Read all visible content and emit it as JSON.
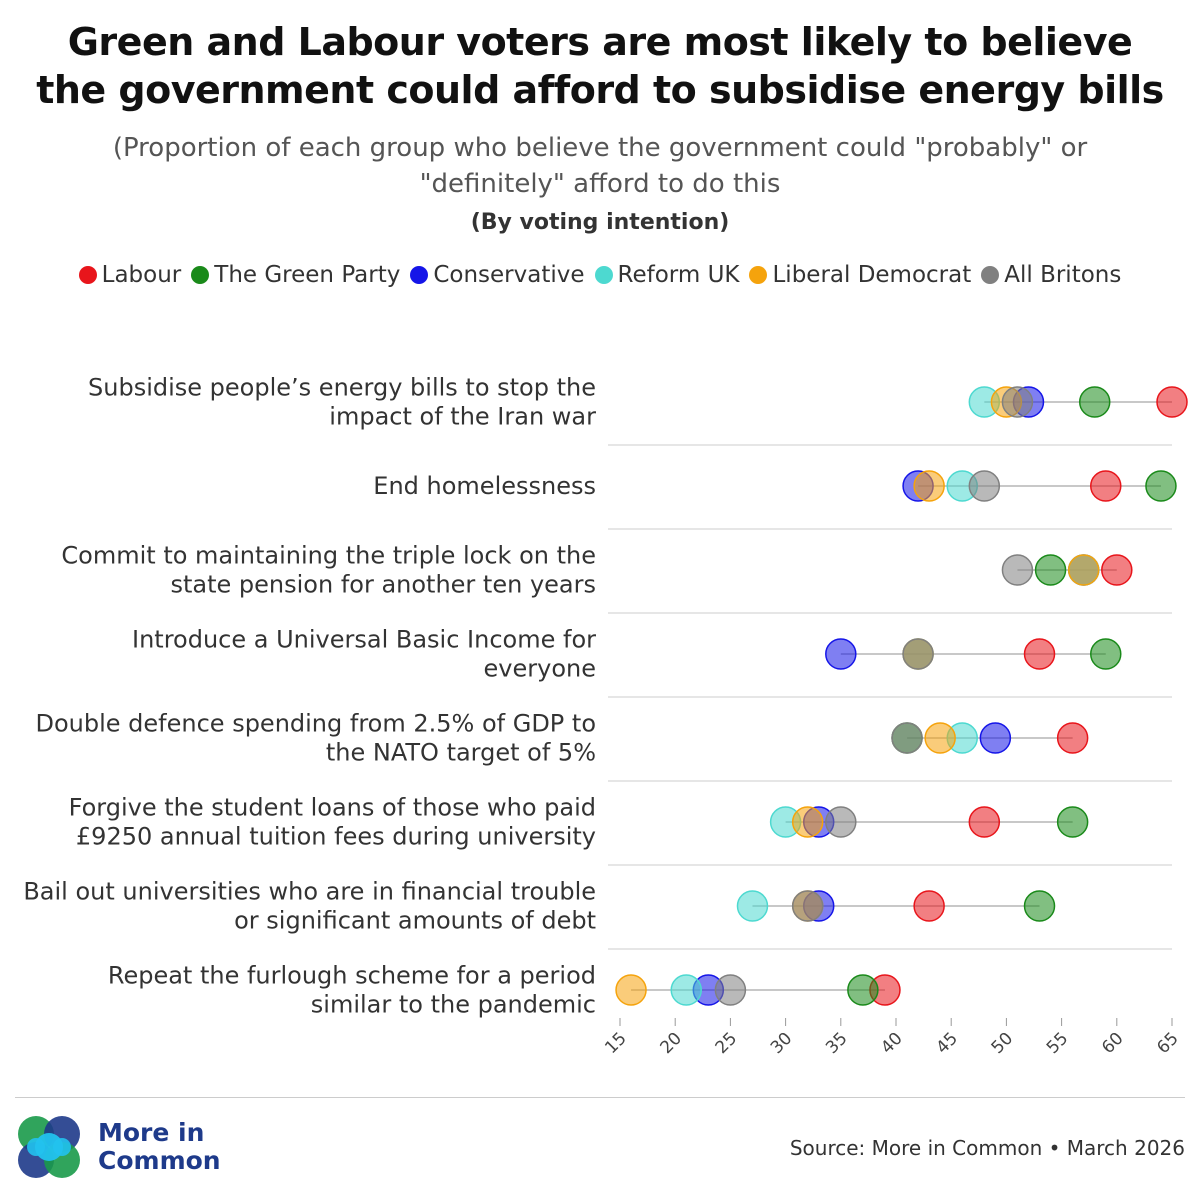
{
  "header": {
    "title_line1": "Green and Labour voters are most likely to believe",
    "title_line2": "the government could afford to subsidise energy bills",
    "subtitle_line1": "(Proportion of each group who believe the government could \"probably\" or",
    "subtitle_line2": "\"definitely\" afford to do this",
    "grouping": "(By voting intention)"
  },
  "legend": [
    {
      "label": "Labour",
      "color": "#e8151b"
    },
    {
      "label": "The Green Party",
      "color": "#1a8a1a"
    },
    {
      "label": "Conservative",
      "color": "#1515e8"
    },
    {
      "label": "Reform UK",
      "color": "#4dd9d0"
    },
    {
      "label": "Liberal Democrat",
      "color": "#f5a30c"
    },
    {
      "label": "All Britons",
      "color": "#808080"
    }
  ],
  "chart_data": {
    "type": "dot-plot",
    "title": "Green and Labour voters are most likely to believe the government could afford to subsidise energy bills",
    "xlim": [
      15,
      65
    ],
    "xticks": [
      15,
      20,
      25,
      30,
      35,
      40,
      45,
      50,
      55,
      60,
      65
    ],
    "categories": [
      [
        "Subsidise people’s energy bills to stop the",
        "impact of the Iran war"
      ],
      [
        "End homelessness"
      ],
      [
        "Commit to maintaining the triple lock on the",
        "state pension for another ten years"
      ],
      [
        "Introduce a Universal Basic Income for",
        "everyone"
      ],
      [
        "Double defence spending from 2.5% of GDP to",
        "the NATO target of 5%"
      ],
      [
        "Forgive the student loans of those who paid",
        "£9250 annual tuition fees during university"
      ],
      [
        "Bail out universities who are in financial trouble",
        "or significant amounts of debt"
      ],
      [
        "Repeat the furlough scheme for a period",
        "similar to the pandemic"
      ]
    ],
    "series": [
      {
        "name": "Labour",
        "color": "#e8151b",
        "values": [
          65,
          59,
          60,
          53,
          56,
          48,
          43,
          39
        ]
      },
      {
        "name": "The Green Party",
        "color": "#1a8a1a",
        "values": [
          58,
          64,
          54,
          59,
          41,
          56,
          53,
          37
        ]
      },
      {
        "name": "Conservative",
        "color": "#1515e8",
        "values": [
          52,
          42,
          57,
          35,
          49,
          33,
          33,
          23
        ]
      },
      {
        "name": "Reform UK",
        "color": "#4dd9d0",
        "values": [
          48,
          46,
          57,
          42,
          46,
          30,
          27,
          21
        ]
      },
      {
        "name": "Liberal Democrat",
        "color": "#f5a30c",
        "values": [
          50,
          43,
          57,
          42,
          44,
          32,
          32,
          16
        ]
      },
      {
        "name": "All Britons",
        "color": "#808080",
        "values": [
          51,
          48,
          51,
          42,
          41,
          35,
          32,
          25
        ]
      }
    ]
  },
  "footer": {
    "logo_line1": "More in",
    "logo_line2": "Common",
    "source": "Source: More in Common • March 2026"
  }
}
